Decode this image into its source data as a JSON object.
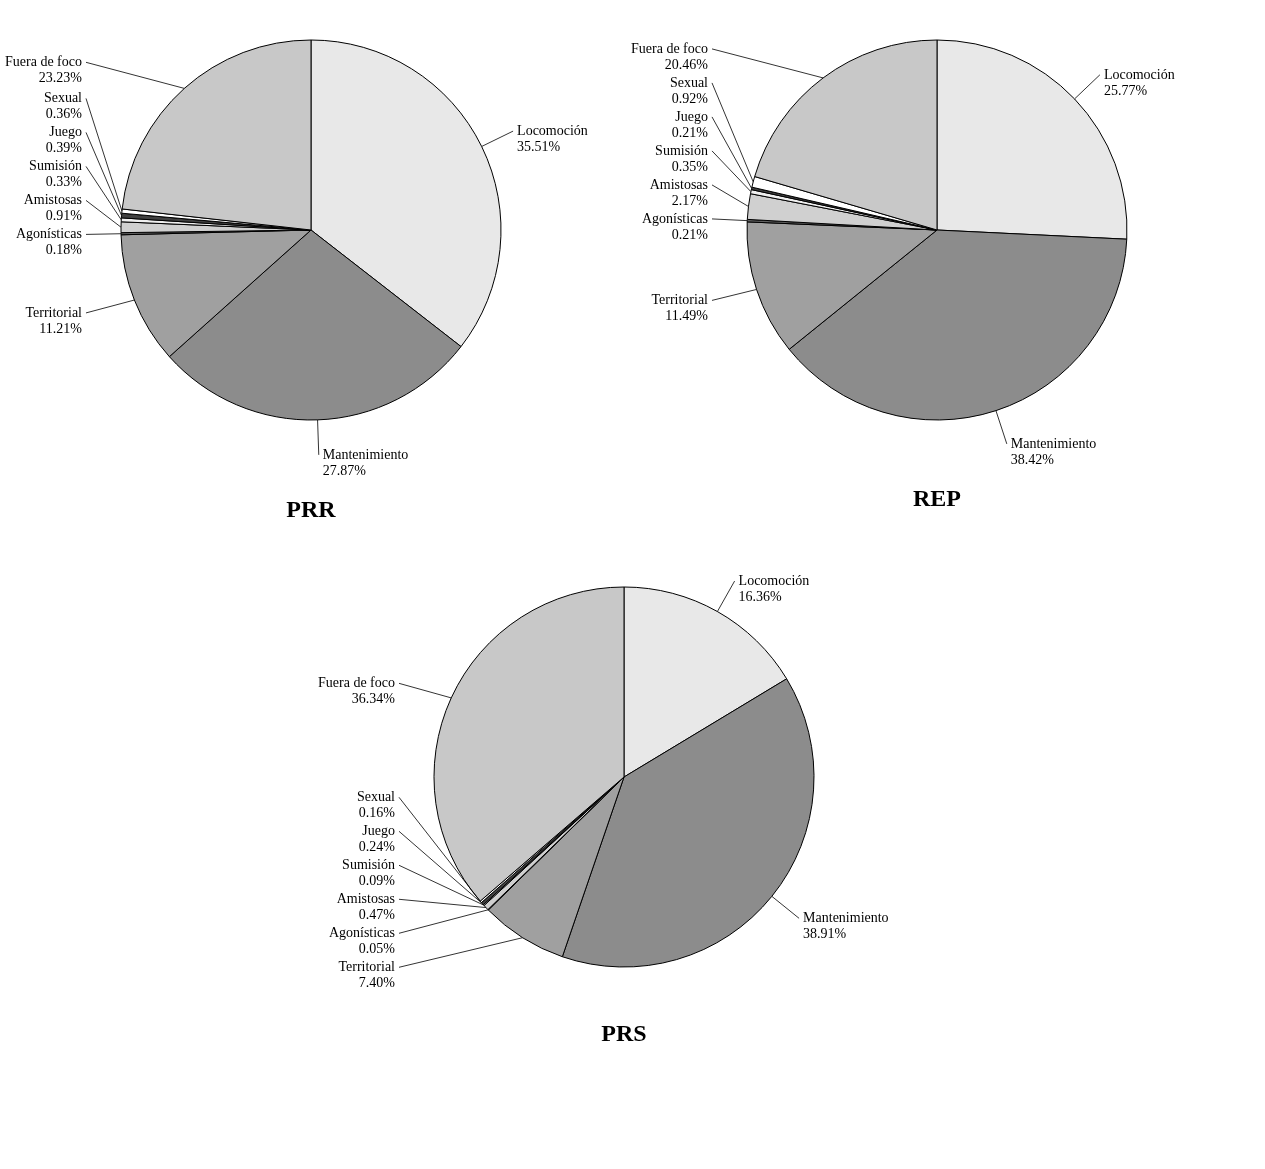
{
  "chart_data": [
    {
      "type": "pie",
      "title": "PRR",
      "data_labels": true,
      "categories": [
        "Locomoción",
        "Mantenimiento",
        "Territorial",
        "Agonísticas",
        "Amistosas",
        "Sumisión",
        "Juego",
        "Sexual",
        "Fuera de foco"
      ],
      "values": [
        35.51,
        27.87,
        11.21,
        0.18,
        0.91,
        0.33,
        0.39,
        0.36,
        23.23
      ],
      "value_labels": [
        "35.51%",
        "27.87%",
        "11.21%",
        "0.18%",
        "0.91%",
        "0.33%",
        "0.39%",
        "0.36%",
        "23.23%"
      ],
      "colors": [
        "#e8e8e8",
        "#8c8c8c",
        "#a0a0a0",
        "#606060",
        "#d0d0d0",
        "#f0f0f0",
        "#404040",
        "#ffffff",
        "#c8c8c8"
      ]
    },
    {
      "type": "pie",
      "title": "REP",
      "data_labels": true,
      "categories": [
        "Locomoción",
        "Mantenimiento",
        "Territorial",
        "Agonísticas",
        "Amistosas",
        "Sumisión",
        "Juego",
        "Sexual",
        "Fuera de foco"
      ],
      "values": [
        25.77,
        38.42,
        11.49,
        0.21,
        2.17,
        0.35,
        0.21,
        0.92,
        20.46
      ],
      "value_labels": [
        "25.77%",
        "38.42%",
        "11.49%",
        "0.21%",
        "2.17%",
        "0.35%",
        "0.21%",
        "0.92%",
        "20.46%"
      ],
      "colors": [
        "#e8e8e8",
        "#8c8c8c",
        "#a0a0a0",
        "#606060",
        "#d0d0d0",
        "#f0f0f0",
        "#404040",
        "#ffffff",
        "#c8c8c8"
      ]
    },
    {
      "type": "pie",
      "title": "PRS",
      "data_labels": true,
      "categories": [
        "Locomoción",
        "Mantenimiento",
        "Territorial",
        "Agonísticas",
        "Amistosas",
        "Sumisión",
        "Juego",
        "Sexual",
        "Fuera de foco"
      ],
      "values": [
        16.36,
        38.91,
        7.4,
        0.05,
        0.47,
        0.09,
        0.24,
        0.16,
        36.34
      ],
      "value_labels": [
        "16.36%",
        "38.91%",
        "7.40%",
        "0.05%",
        "0.47%",
        "0.09%",
        "0.24%",
        "0.16%",
        "36.34%"
      ],
      "colors": [
        "#e8e8e8",
        "#8c8c8c",
        "#a0a0a0",
        "#606060",
        "#d0d0d0",
        "#f0f0f0",
        "#404040",
        "#ffffff",
        "#c8c8c8"
      ]
    }
  ]
}
